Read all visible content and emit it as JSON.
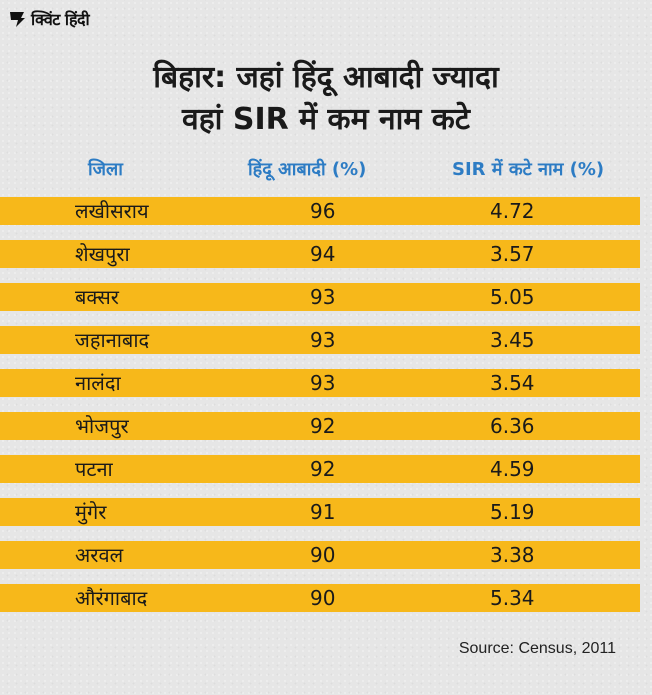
{
  "brand": {
    "name": "क्विंट हिंदी"
  },
  "title": {
    "line1": "बिहार: जहां हिंदू आबादी ज्यादा",
    "line2": "वहां SIR में कम नाम कटे"
  },
  "colors": {
    "row_fill": "#f7b81a",
    "header_text": "#2d7cc4",
    "background": "#e6e6e6"
  },
  "chart_data": {
    "type": "table",
    "title": "बिहार: जहां हिंदू आबादी ज्यादा वहां SIR में कम नाम कटे",
    "columns": [
      "जिला",
      "हिंदू आबादी (%)",
      "SIR में कटे नाम (%)"
    ],
    "rows": [
      {
        "district": "लखीसराय",
        "hindu_pct": "96",
        "sir_pct": "4.72"
      },
      {
        "district": "शेखपुरा",
        "hindu_pct": "94",
        "sir_pct": "3.57"
      },
      {
        "district": "बक्सर",
        "hindu_pct": "93",
        "sir_pct": "5.05"
      },
      {
        "district": "जहानाबाद",
        "hindu_pct": "93",
        "sir_pct": "3.45"
      },
      {
        "district": "नालंदा",
        "hindu_pct": "93",
        "sir_pct": "3.54"
      },
      {
        "district": "भोजपुर",
        "hindu_pct": "92",
        "sir_pct": "6.36"
      },
      {
        "district": "पटना",
        "hindu_pct": "92",
        "sir_pct": "4.59"
      },
      {
        "district": "मुंगेर",
        "hindu_pct": "91",
        "sir_pct": "5.19"
      },
      {
        "district": "अरवल",
        "hindu_pct": "90",
        "sir_pct": "3.38"
      },
      {
        "district": "औरंगाबाद",
        "hindu_pct": "90",
        "sir_pct": "5.34"
      }
    ],
    "source": "Source: Census, 2011"
  }
}
